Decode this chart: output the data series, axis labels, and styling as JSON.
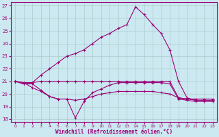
{
  "xlabel": "Windchill (Refroidissement éolien,°C)",
  "bg_color": "#cce8f0",
  "line_color": "#990077",
  "grid_color": "#aacccc",
  "ylim": [
    17.8,
    27.3
  ],
  "xlim": [
    -0.5,
    23.5
  ],
  "yticks": [
    18,
    19,
    20,
    21,
    22,
    23,
    24,
    25,
    26,
    27
  ],
  "xticks": [
    0,
    1,
    2,
    3,
    4,
    5,
    6,
    7,
    8,
    9,
    10,
    11,
    12,
    13,
    14,
    15,
    16,
    17,
    18,
    19,
    20,
    21,
    22,
    23
  ],
  "lines": [
    {
      "x": [
        0,
        1,
        2,
        3,
        4,
        5,
        6,
        7,
        8,
        9,
        10,
        11,
        12,
        13,
        14,
        15,
        16,
        17,
        18,
        19,
        20,
        21,
        22,
        23
      ],
      "y": [
        21.0,
        20.9,
        20.9,
        21.0,
        21.0,
        21.0,
        21.0,
        21.0,
        21.0,
        21.0,
        21.0,
        21.0,
        21.0,
        21.0,
        21.0,
        21.0,
        21.0,
        21.0,
        21.0,
        19.7,
        19.6,
        19.6,
        19.6,
        19.6
      ]
    },
    {
      "x": [
        0,
        1,
        2,
        3,
        4,
        5,
        6,
        7,
        8,
        9,
        10,
        11,
        12,
        13,
        14,
        15,
        16,
        17,
        18,
        19,
        20,
        21,
        22,
        23
      ],
      "y": [
        21.0,
        20.9,
        20.5,
        20.2,
        19.8,
        19.6,
        19.6,
        19.5,
        19.6,
        19.8,
        20.0,
        20.1,
        20.2,
        20.2,
        20.2,
        20.2,
        20.2,
        20.1,
        20.0,
        19.7,
        19.6,
        19.5,
        19.5,
        19.5
      ]
    },
    {
      "x": [
        0,
        1,
        2,
        3,
        4,
        5,
        6,
        7,
        8,
        9,
        10,
        11,
        12,
        13,
        14,
        15,
        16,
        17,
        18,
        19,
        20,
        21,
        22,
        23
      ],
      "y": [
        21.0,
        20.8,
        20.8,
        20.3,
        19.8,
        19.6,
        19.6,
        18.1,
        19.4,
        20.1,
        20.4,
        20.7,
        20.9,
        20.9,
        20.9,
        20.9,
        20.9,
        20.9,
        20.8,
        19.6,
        19.5,
        19.4,
        19.4,
        19.4
      ]
    },
    {
      "x": [
        0,
        1,
        2,
        3,
        4,
        5,
        6,
        7,
        8,
        9,
        10,
        11,
        12,
        13,
        14,
        15,
        16,
        17,
        18,
        19,
        20,
        21,
        22,
        23
      ],
      "y": [
        21.0,
        20.8,
        20.9,
        21.5,
        22.0,
        22.5,
        23.0,
        23.2,
        23.5,
        24.0,
        24.5,
        24.8,
        25.2,
        25.5,
        26.9,
        26.3,
        25.5,
        24.8,
        23.5,
        21.0,
        19.7,
        19.5,
        19.5,
        19.5
      ]
    }
  ]
}
